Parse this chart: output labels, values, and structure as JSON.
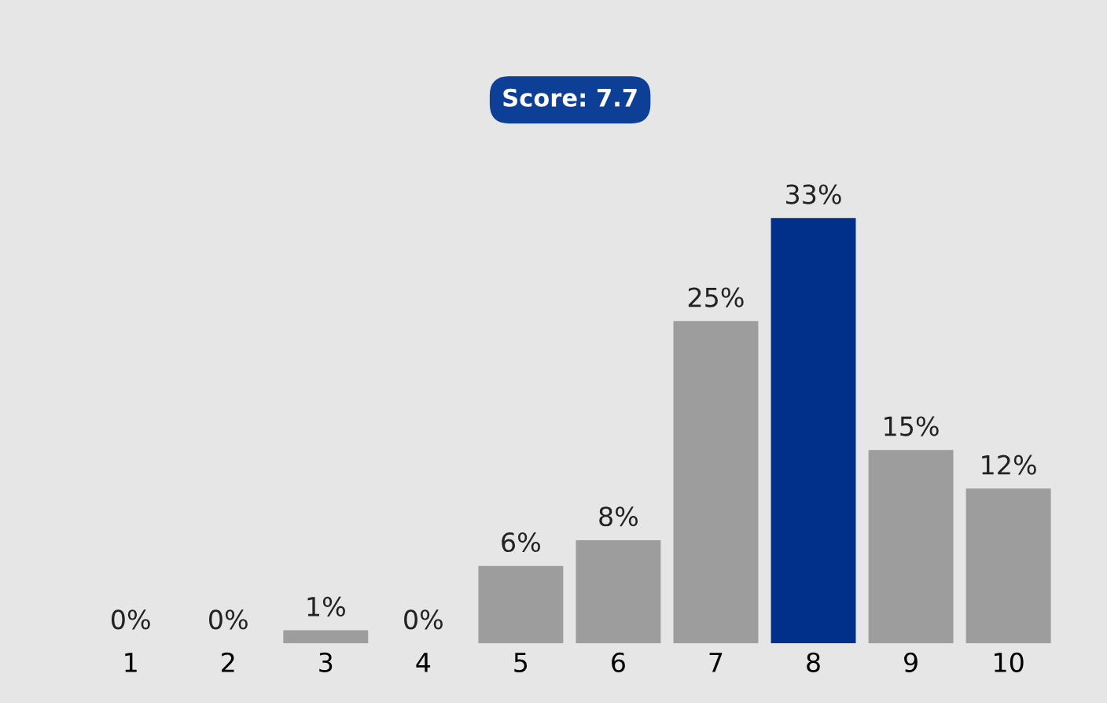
{
  "chart_data": {
    "type": "bar",
    "title": "Score: 7.7",
    "categories": [
      "1",
      "2",
      "3",
      "4",
      "5",
      "6",
      "7",
      "8",
      "9",
      "10"
    ],
    "values": [
      0,
      0,
      1,
      0,
      6,
      8,
      25,
      33,
      15,
      12
    ],
    "colors": [
      "#9e9d9d",
      "#9e9d9d",
      "#9e9d9d",
      "#9e9d9d",
      "#9e9d9d",
      "#9e9d9d",
      "#9e9d9d",
      "#00308a",
      "#9e9d9d",
      "#9e9d9d"
    ],
    "value_labels": [
      "0%",
      "0%",
      "1%",
      "0%",
      "6%",
      "8%",
      "25%",
      "33%",
      "15%",
      "12%"
    ],
    "grid": false,
    "legend": false
  }
}
